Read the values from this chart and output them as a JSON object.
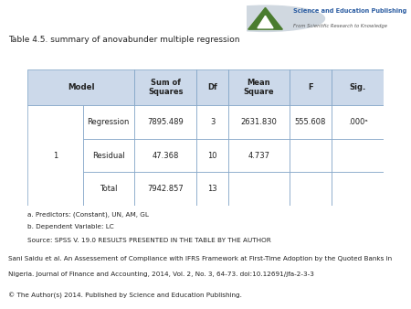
{
  "title": "Table 4.5. summary of anovabunder multiple regression",
  "rows": [
    [
      "1",
      "Regression",
      "7895.489",
      "3",
      "2631.830",
      "555.608",
      ".000ᵃ"
    ],
    [
      "",
      "Residual",
      "47.368",
      "10",
      "4.737",
      "",
      ""
    ],
    [
      "",
      "Total",
      "7942.857",
      "13",
      "",
      "",
      ""
    ]
  ],
  "footnotes": [
    "a. Predictors: (Constant), UN, AM, GL",
    "b. Dependent Variable: LC",
    "Source: SPSS V. 19.0 RESULTS PRESENTED IN THE TABLE BY THE AUTHOR"
  ],
  "citation_line1": "Sani Saidu et al. An Assessement of Compliance with IFRS Framework at First-Time Adoption by the Quoted Banks in",
  "citation_line2": "Nigeria. Journal of Finance and Accounting, 2014, Vol. 2, No. 3, 64-73. doi:10.12691/jfa-2-3-3",
  "copyright": "© The Author(s) 2014. Published by Science and Education Publishing.",
  "header_bg": "#ccd9ea",
  "border_color": "#7a9fc4",
  "logo_text_main": "Science and Education Publishing",
  "logo_text_sub": "From Scientific Research to Knowledge",
  "logo_main_color": "#2e5fa3",
  "logo_sub_color": "#555555",
  "logo_green": "#4a7c2f",
  "logo_circle_color": "#d0d8e0",
  "text_color": "#222222",
  "white": "#ffffff"
}
